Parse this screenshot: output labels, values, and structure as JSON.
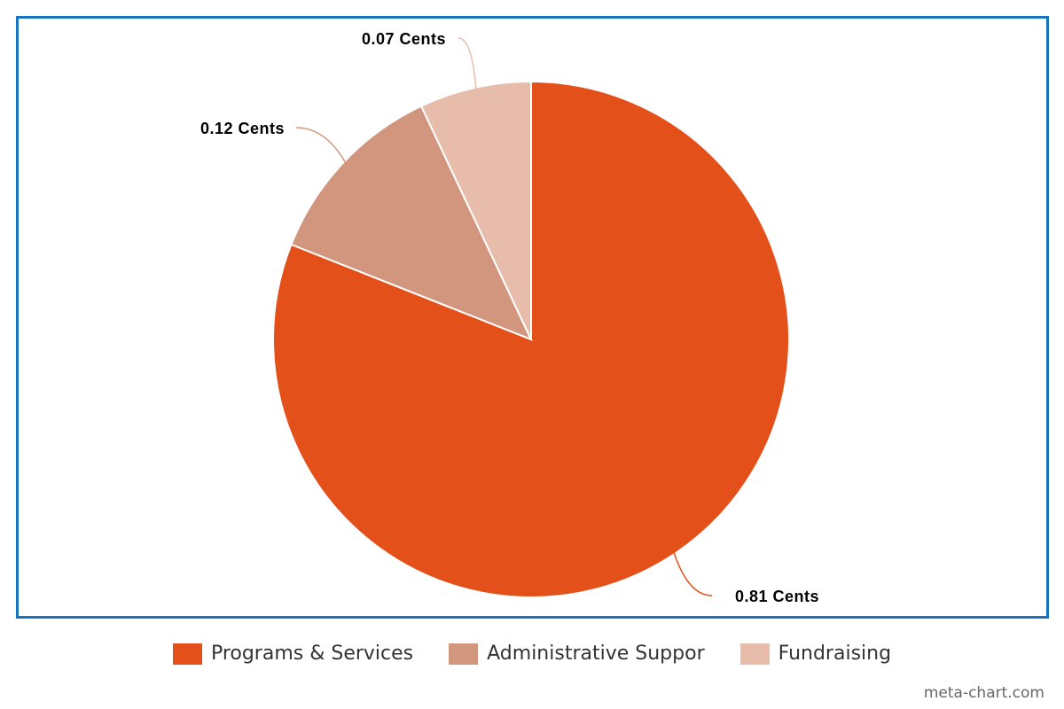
{
  "chart_data": {
    "type": "pie",
    "categories": [
      "Programs & Services",
      "Administrative Suppor",
      "Fundraising"
    ],
    "values": [
      0.81,
      0.12,
      0.07
    ],
    "data_labels": [
      "0.81 Cents",
      "0.12 Cents",
      "0.07 Cents"
    ],
    "colors": [
      "#e4501a",
      "#d2967e",
      "#e8bcaa"
    ],
    "start_angle": "12 o'clock, clockwise",
    "legend_position": "bottom-center"
  },
  "credit": "meta-chart.com",
  "frame_color": "#1a73c1"
}
